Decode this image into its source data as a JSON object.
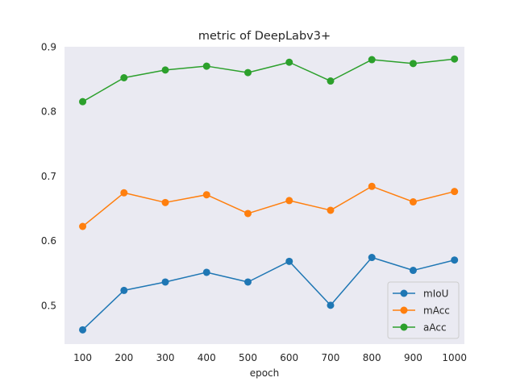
{
  "chart_data": {
    "type": "line",
    "title": "metric of DeepLabv3+",
    "xlabel": "epoch",
    "ylabel": "",
    "x": [
      100,
      200,
      300,
      400,
      500,
      600,
      700,
      800,
      900,
      1000
    ],
    "xlim": [
      56,
      1024
    ],
    "ylim": [
      0.44,
      0.9
    ],
    "xticks": [
      100,
      200,
      300,
      400,
      500,
      600,
      700,
      800,
      900,
      1000
    ],
    "yticks": [
      0.5,
      0.6,
      0.7,
      0.8,
      0.9
    ],
    "ytick_labels": [
      "0.5",
      "0.6",
      "0.7",
      "0.8",
      "0.9"
    ],
    "grid": false,
    "legend_position": "lower right",
    "colors": {
      "plot_background": "#eaeaf2",
      "legend_background": "#eaeaf2",
      "legend_border": "#cccccc"
    },
    "series": [
      {
        "name": "mIoU",
        "color": "#1f77b4",
        "marker": "circle",
        "values": [
          0.462,
          0.523,
          0.536,
          0.551,
          0.536,
          0.568,
          0.5,
          0.574,
          0.554,
          0.57
        ]
      },
      {
        "name": "mAcc",
        "color": "#ff7f0e",
        "marker": "circle",
        "values": [
          0.622,
          0.674,
          0.659,
          0.671,
          0.642,
          0.662,
          0.647,
          0.684,
          0.66,
          0.676
        ]
      },
      {
        "name": "aAcc",
        "color": "#2ca02c",
        "marker": "circle",
        "values": [
          0.815,
          0.852,
          0.864,
          0.87,
          0.86,
          0.876,
          0.847,
          0.88,
          0.874,
          0.881
        ]
      }
    ]
  }
}
